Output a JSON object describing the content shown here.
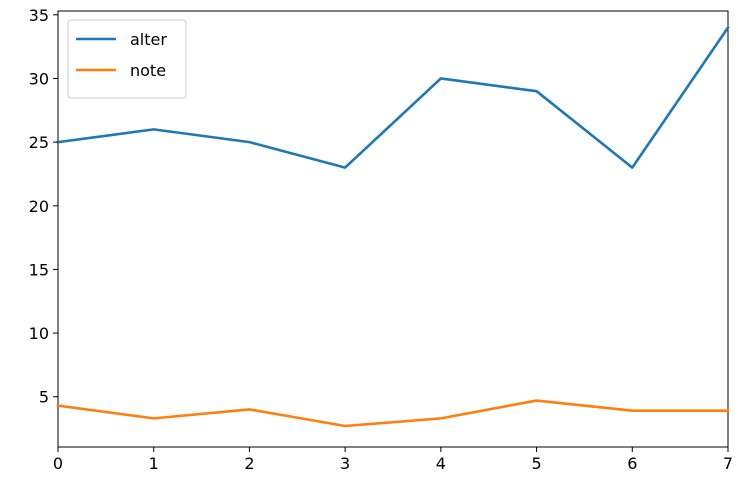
{
  "chart_data": {
    "type": "line",
    "x": [
      0,
      1,
      2,
      3,
      4,
      5,
      6,
      7
    ],
    "series": [
      {
        "name": "alter",
        "color": "#1f77b4",
        "values": [
          25,
          26,
          25,
          23,
          30,
          29,
          23,
          34
        ]
      },
      {
        "name": "note",
        "color": "#ff7f0e",
        "values": [
          4.3,
          3.3,
          4.0,
          2.7,
          3.3,
          4.7,
          3.9,
          3.9
        ]
      }
    ],
    "xlim": [
      0,
      7
    ],
    "ylim": [
      1.05,
      35.3
    ],
    "xticks": [
      0,
      1,
      2,
      3,
      4,
      5,
      6,
      7
    ],
    "yticks": [
      5,
      10,
      15,
      20,
      25,
      30,
      35
    ],
    "title": "",
    "xlabel": "",
    "ylabel": "",
    "grid": false,
    "legend": "upper-left"
  }
}
